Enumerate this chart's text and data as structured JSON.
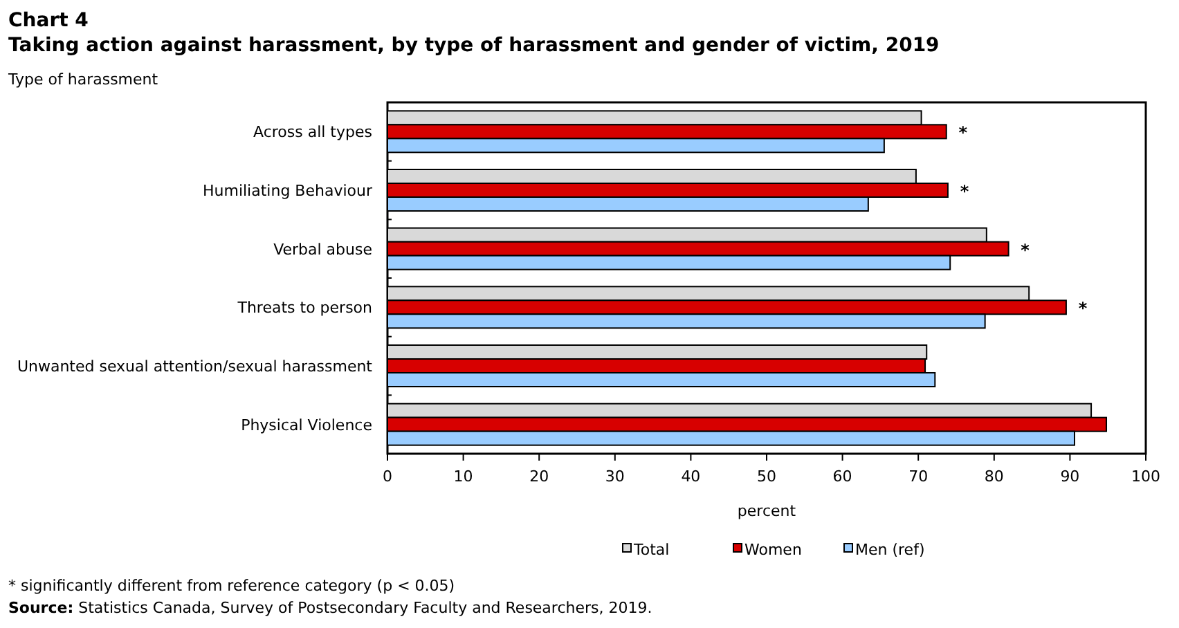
{
  "chart_data": {
    "type": "bar",
    "orientation": "horizontal",
    "title": "Chart 4",
    "subtitle": "Taking action against harassment, by type of harassment and gender of victim, 2019",
    "ylabel": "Type of harassment",
    "xlabel": "percent",
    "categories": [
      "Across all types",
      "Humiliating Behaviour",
      "Verbal abuse",
      "Threats to person",
      "Unwanted sexual attention/sexual harassment",
      "Physical Violence"
    ],
    "series": [
      {
        "name": "Total",
        "color": "#d9d9d9",
        "values": [
          70.4,
          69.7,
          79.0,
          84.6,
          71.1,
          92.8
        ]
      },
      {
        "name": "Women",
        "color": "#d70000",
        "values": [
          73.7,
          73.9,
          81.9,
          89.5,
          70.9,
          94.8
        ]
      },
      {
        "name": "Men (ref)",
        "color": "#99ccff",
        "values": [
          65.5,
          63.4,
          74.2,
          78.8,
          72.2,
          90.6
        ]
      }
    ],
    "xlim": [
      0,
      100
    ],
    "xticks": [
      0,
      10,
      20,
      30,
      40,
      50,
      60,
      70,
      80,
      90,
      100
    ],
    "legend": "bottom",
    "grid": false,
    "annotations": [
      {
        "text": "*",
        "x": 73.7,
        "y": "Across all types"
      },
      {
        "text": "*",
        "x": 73.9,
        "y": "Humiliating Behaviour"
      },
      {
        "text": "*",
        "x": 81.9,
        "y": "Verbal abuse"
      },
      {
        "text": "*",
        "x": 89.5,
        "y": "Threats to person"
      },
      "* significantly different from reference category (p < 0.05)",
      "Source: Statistics Canada, Survey of Postsecondary Faculty and Researchers, 2019."
    ]
  }
}
